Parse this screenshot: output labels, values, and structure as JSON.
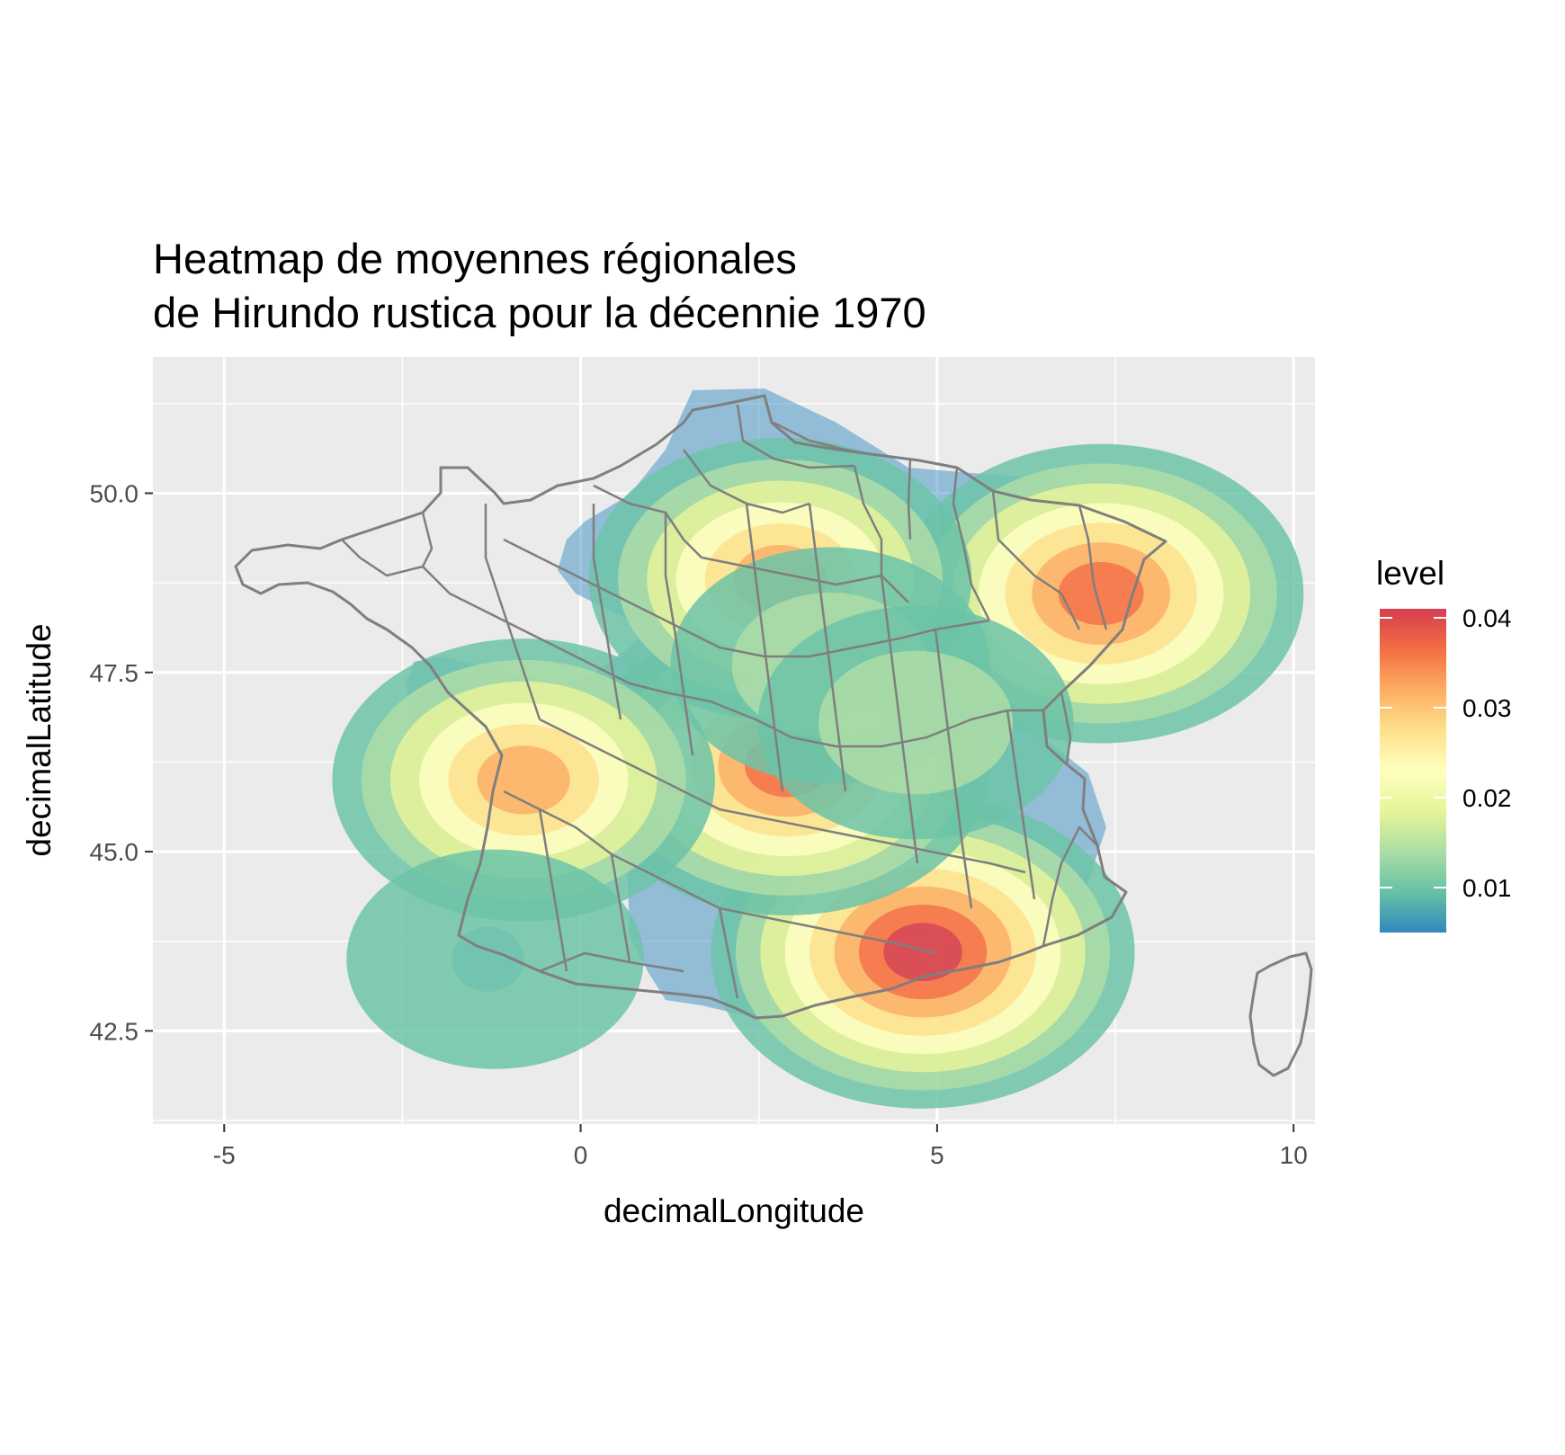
{
  "chart_data": {
    "type": "heatmap",
    "title_lines": [
      "Heatmap de moyennes régionales",
      "de Hirundo rustica pour la décennie 1970"
    ],
    "xlabel": "decimalLongitude",
    "ylabel": "decimalLatitude",
    "xlim": [
      -6,
      10.3
    ],
    "ylim": [
      41.2,
      51.9
    ],
    "x_ticks": [
      -5,
      0,
      5,
      10
    ],
    "x_tick_labels": [
      "-5",
      "0",
      "5",
      "10"
    ],
    "y_ticks": [
      42.5,
      45.0,
      47.5,
      50.0
    ],
    "y_tick_labels": [
      "42.5",
      "45.0",
      "47.5",
      "50.0"
    ],
    "grid": true,
    "panel_background": "#ebebeb",
    "legend": {
      "title": "level",
      "position": "right",
      "ticks": [
        0.01,
        0.02,
        0.03,
        0.04
      ],
      "tick_labels": [
        "0.01",
        "0.02",
        "0.03",
        "0.04"
      ],
      "range": [
        0.005,
        0.041
      ],
      "palette": [
        "#3288bd",
        "#66c2a5",
        "#abdda4",
        "#e6f598",
        "#ffffbf",
        "#fee08b",
        "#fdae61",
        "#f46d43",
        "#d53e4f"
      ]
    },
    "density_hotspots": [
      {
        "lon": 4.8,
        "lat": 43.6,
        "peak_level": 0.041
      },
      {
        "lon": 7.3,
        "lat": 48.6,
        "peak_level": 0.036
      },
      {
        "lon": 2.9,
        "lat": 46.2,
        "peak_level": 0.036
      },
      {
        "lon": 2.8,
        "lat": 48.8,
        "peak_level": 0.03
      },
      {
        "lon": -0.8,
        "lat": 46.0,
        "peak_level": 0.03
      },
      {
        "lon": 3.5,
        "lat": 47.6,
        "peak_level": 0.013
      },
      {
        "lon": 4.7,
        "lat": 46.8,
        "peak_level": 0.012
      },
      {
        "lon": -1.2,
        "lat": 43.5,
        "peak_level": 0.007
      }
    ],
    "map_outline": "France departments",
    "colors": {
      "outline": "#7f7f7f",
      "grid": "#ffffff"
    }
  }
}
